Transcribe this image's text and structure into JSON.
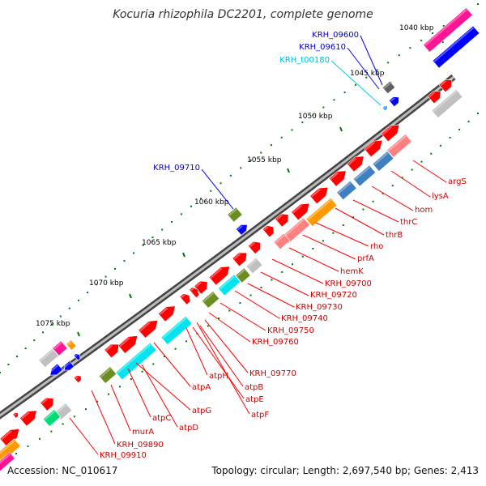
{
  "title": "Kocuria rhizophila DC2201, complete genome",
  "footer": {
    "accession": "Accession: NC_010617",
    "summary": "Topology: circular; Length: 2,697,540 bp; Genes: 2,413"
  },
  "ticks": [
    "1040 kbp",
    "1045 kbp",
    "1050 kbp",
    "1055 kbp",
    "1060 kbp",
    "1065 kbp",
    "1070 kbp",
    "1075 kbp"
  ],
  "colors": {
    "cds": "#ff0000",
    "cds_pink": "#ff8080",
    "gray": "#c0c0c0",
    "dark_gray": "#606060",
    "blue": "#0000ff",
    "steel": "#4080c0",
    "orange": "#ff9900",
    "olive": "#6b8e23",
    "cyan": "#00e5ee",
    "magenta": "#ff1493",
    "green": "#00dd77",
    "light_blue": "#3399ff",
    "backbone": "#666666",
    "tick_green": "#007700",
    "label_red": "#cc0000",
    "label_blue": "#0000cc",
    "label_cyan": "#00bbdd"
  },
  "labels": [
    {
      "text": "KRH_09600",
      "color": "blue"
    },
    {
      "text": "KRH_09610",
      "color": "blue"
    },
    {
      "text": "KRH_t00180",
      "color": "cyan"
    },
    {
      "text": "KRH_09710",
      "color": "blue"
    },
    {
      "text": "argS",
      "color": "red"
    },
    {
      "text": "lysA",
      "color": "red"
    },
    {
      "text": "hom",
      "color": "red"
    },
    {
      "text": "thrC",
      "color": "red"
    },
    {
      "text": "thrB",
      "color": "red"
    },
    {
      "text": "rho",
      "color": "red"
    },
    {
      "text": "prfA",
      "color": "red"
    },
    {
      "text": "hemK",
      "color": "red"
    },
    {
      "text": "KRH_09700",
      "color": "red"
    },
    {
      "text": "KRH_09720",
      "color": "red"
    },
    {
      "text": "KRH_09730",
      "color": "red"
    },
    {
      "text": "KRH_09740",
      "color": "red"
    },
    {
      "text": "KRH_09750",
      "color": "red"
    },
    {
      "text": "KRH_09760",
      "color": "red"
    },
    {
      "text": "KRH_09770",
      "color": "red"
    },
    {
      "text": "atpH",
      "color": "red"
    },
    {
      "text": "atpB",
      "color": "red"
    },
    {
      "text": "atpE",
      "color": "red"
    },
    {
      "text": "atpF",
      "color": "red"
    },
    {
      "text": "atpA",
      "color": "red"
    },
    {
      "text": "atpG",
      "color": "red"
    },
    {
      "text": "atpC",
      "color": "red"
    },
    {
      "text": "atpD",
      "color": "red"
    },
    {
      "text": "murA",
      "color": "red"
    },
    {
      "text": "KRH_09890",
      "color": "red"
    },
    {
      "text": "KRH_09910",
      "color": "red"
    }
  ]
}
